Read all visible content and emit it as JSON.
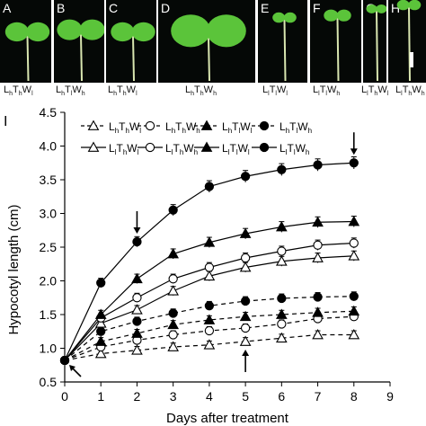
{
  "panels": [
    {
      "letter": "A",
      "label": [
        "L",
        "h",
        "T",
        "h",
        "W",
        "l"
      ]
    },
    {
      "letter": "B",
      "label": [
        "L",
        "h",
        "T",
        "l",
        "W",
        "h"
      ]
    },
    {
      "letter": "C",
      "label": [
        "L",
        "h",
        "T",
        "h",
        "W",
        "l"
      ]
    },
    {
      "letter": "D",
      "label": [
        "L",
        "h",
        "T",
        "h",
        "W",
        "h"
      ]
    },
    {
      "letter": "E",
      "label": [
        "L",
        "l",
        "T",
        "l",
        "W",
        "l"
      ]
    },
    {
      "letter": "F",
      "label": [
        "L",
        "l",
        "T",
        "l",
        "W",
        "h"
      ]
    },
    {
      "letter": "G",
      "label": [
        "L",
        "l",
        "T",
        "h",
        "W",
        "l"
      ]
    },
    {
      "letter": "H",
      "label": [
        "L",
        "l",
        "T",
        "h",
        "W",
        "h"
      ]
    }
  ],
  "colors": {
    "line": "#000000",
    "photo_bg": "#050806",
    "leaf": "#5bc43a",
    "stem": "#d9e6b0"
  },
  "chart_data": {
    "type": "line",
    "panel_letter": "I",
    "xlabel": "Days after treatment",
    "ylabel": "Hypocotyl length (cm)",
    "xlim": [
      0,
      9
    ],
    "ylim": [
      0.5,
      4.5
    ],
    "xticks": [
      "0",
      "1",
      "2",
      "3",
      "4",
      "5",
      "6",
      "7",
      "8",
      "9"
    ],
    "yticks": [
      "0.5",
      "1.0",
      "1.5",
      "2.0",
      "2.5",
      "3.0",
      "3.5",
      "4.0",
      "4.5"
    ],
    "x": [
      0,
      1,
      2,
      3,
      4,
      5,
      6,
      7,
      8
    ],
    "series": [
      {
        "name": "LhThWl",
        "sub": [
          "h",
          "h",
          "l"
        ],
        "marker": "triangle-open",
        "dashed": true,
        "values": [
          0.82,
          0.92,
          0.97,
          1.02,
          1.05,
          1.1,
          1.15,
          1.2,
          1.2
        ]
      },
      {
        "name": "LhThWh",
        "sub": [
          "h",
          "h",
          "h"
        ],
        "marker": "circle-open",
        "dashed": true,
        "values": [
          0.82,
          1.02,
          1.12,
          1.2,
          1.26,
          1.3,
          1.36,
          1.44,
          1.47
        ]
      },
      {
        "name": "LhTlWl",
        "sub": [
          "h",
          "l",
          "l"
        ],
        "marker": "triangle-filled",
        "dashed": true,
        "values": [
          0.82,
          1.1,
          1.22,
          1.35,
          1.42,
          1.47,
          1.5,
          1.53,
          1.55
        ]
      },
      {
        "name": "LhTlWh",
        "sub": [
          "h",
          "l",
          "h"
        ],
        "marker": "circle-filled",
        "dashed": true,
        "values": [
          0.82,
          1.25,
          1.4,
          1.52,
          1.63,
          1.7,
          1.74,
          1.76,
          1.77
        ]
      },
      {
        "name": "LlThWl",
        "sub": [
          "l",
          "h",
          "l"
        ],
        "marker": "triangle-open",
        "dashed": false,
        "values": [
          0.82,
          1.37,
          1.57,
          1.85,
          2.07,
          2.2,
          2.29,
          2.34,
          2.37
        ]
      },
      {
        "name": "LlThWh",
        "sub": [
          "l",
          "h",
          "h"
        ],
        "marker": "circle-open",
        "dashed": false,
        "values": [
          0.82,
          1.45,
          1.75,
          2.03,
          2.2,
          2.34,
          2.44,
          2.53,
          2.56
        ]
      },
      {
        "name": "LlTlWl",
        "sub": [
          "l",
          "l",
          "l"
        ],
        "marker": "triangle-filled",
        "dashed": false,
        "values": [
          0.82,
          1.5,
          2.03,
          2.4,
          2.57,
          2.7,
          2.8,
          2.87,
          2.88
        ]
      },
      {
        "name": "LlTlWh",
        "sub": [
          "l",
          "l",
          "h"
        ],
        "marker": "circle-filled",
        "dashed": false,
        "values": [
          0.82,
          1.97,
          2.58,
          3.05,
          3.4,
          3.55,
          3.65,
          3.72,
          3.75
        ]
      }
    ],
    "arrows": [
      {
        "x": 2,
        "y": 2.58,
        "dir": "down"
      },
      {
        "x": 8,
        "y": 3.75,
        "dir": "down"
      },
      {
        "x": 5,
        "y": 1.1,
        "dir": "up"
      },
      {
        "x": 0,
        "y": 0.82,
        "dir": "up-left"
      }
    ],
    "legend_placement": "top"
  }
}
